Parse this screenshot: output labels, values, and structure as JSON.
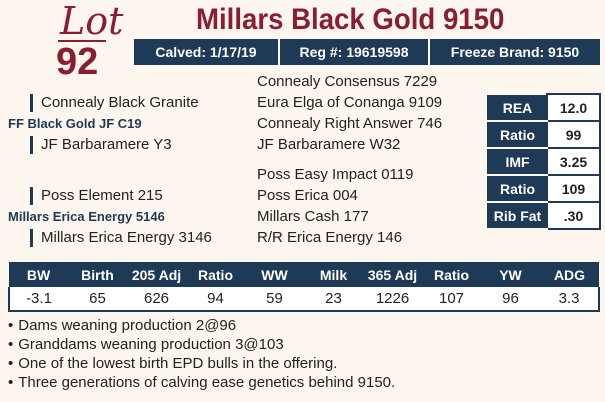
{
  "lot": {
    "label": "Lot",
    "number": "92"
  },
  "bull_name": "Millars Black Gold 9150",
  "info": {
    "calved": "Calved: 1/17/19",
    "reg": "Reg #: 19619598",
    "freeze_brand": "Freeze Brand: 9150"
  },
  "pedigree": {
    "sire_sire_sire": "Connealy Consensus 7229",
    "sire_sire": "Connealy Black Granite",
    "sire_sire_dam": "Eura Elga of Conanga 9109",
    "sire": "FF Black Gold JF C19",
    "sire_dam_sire": "Connealy Right Answer 746",
    "sire_dam": "JF Barbaramere Y3",
    "sire_dam_dam": "JF Barbaramere W32",
    "dam_sire_sire": "Poss Easy Impact 0119",
    "dam_sire": "Poss Element 215",
    "dam_sire_dam": "Poss Erica 004",
    "dam": "Millars Erica Energy 5146",
    "dam_dam_sire": "Millars Cash 177",
    "dam_dam": "Millars Erica Energy 3146",
    "dam_dam_dam": "R/R Erica Energy 146"
  },
  "carcass": [
    {
      "label": "REA",
      "value": "12.0"
    },
    {
      "label": "Ratio",
      "value": "99"
    },
    {
      "label": "IMF",
      "value": "3.25"
    },
    {
      "label": "Ratio",
      "value": "109"
    },
    {
      "label": "Rib Fat",
      "value": ".30"
    }
  ],
  "epd": {
    "headers": [
      "BW",
      "Birth",
      "205 Adj",
      "Ratio",
      "WW",
      "Milk",
      "365 Adj",
      "Ratio",
      "YW",
      "ADG"
    ],
    "values": [
      "-3.1",
      "65",
      "626",
      "94",
      "59",
      "23",
      "1226",
      "107",
      "96",
      "3.3"
    ]
  },
  "notes": [
    "Dams weaning production 2@96",
    "Granddams weaning production 3@103",
    "One of the lowest birth EPD bulls in the offering.",
    "Three generations of calving ease genetics behind 9150."
  ],
  "colors": {
    "maroon": "#8b1d33",
    "navy": "#1f3a56",
    "background": "#fdf6ee"
  }
}
